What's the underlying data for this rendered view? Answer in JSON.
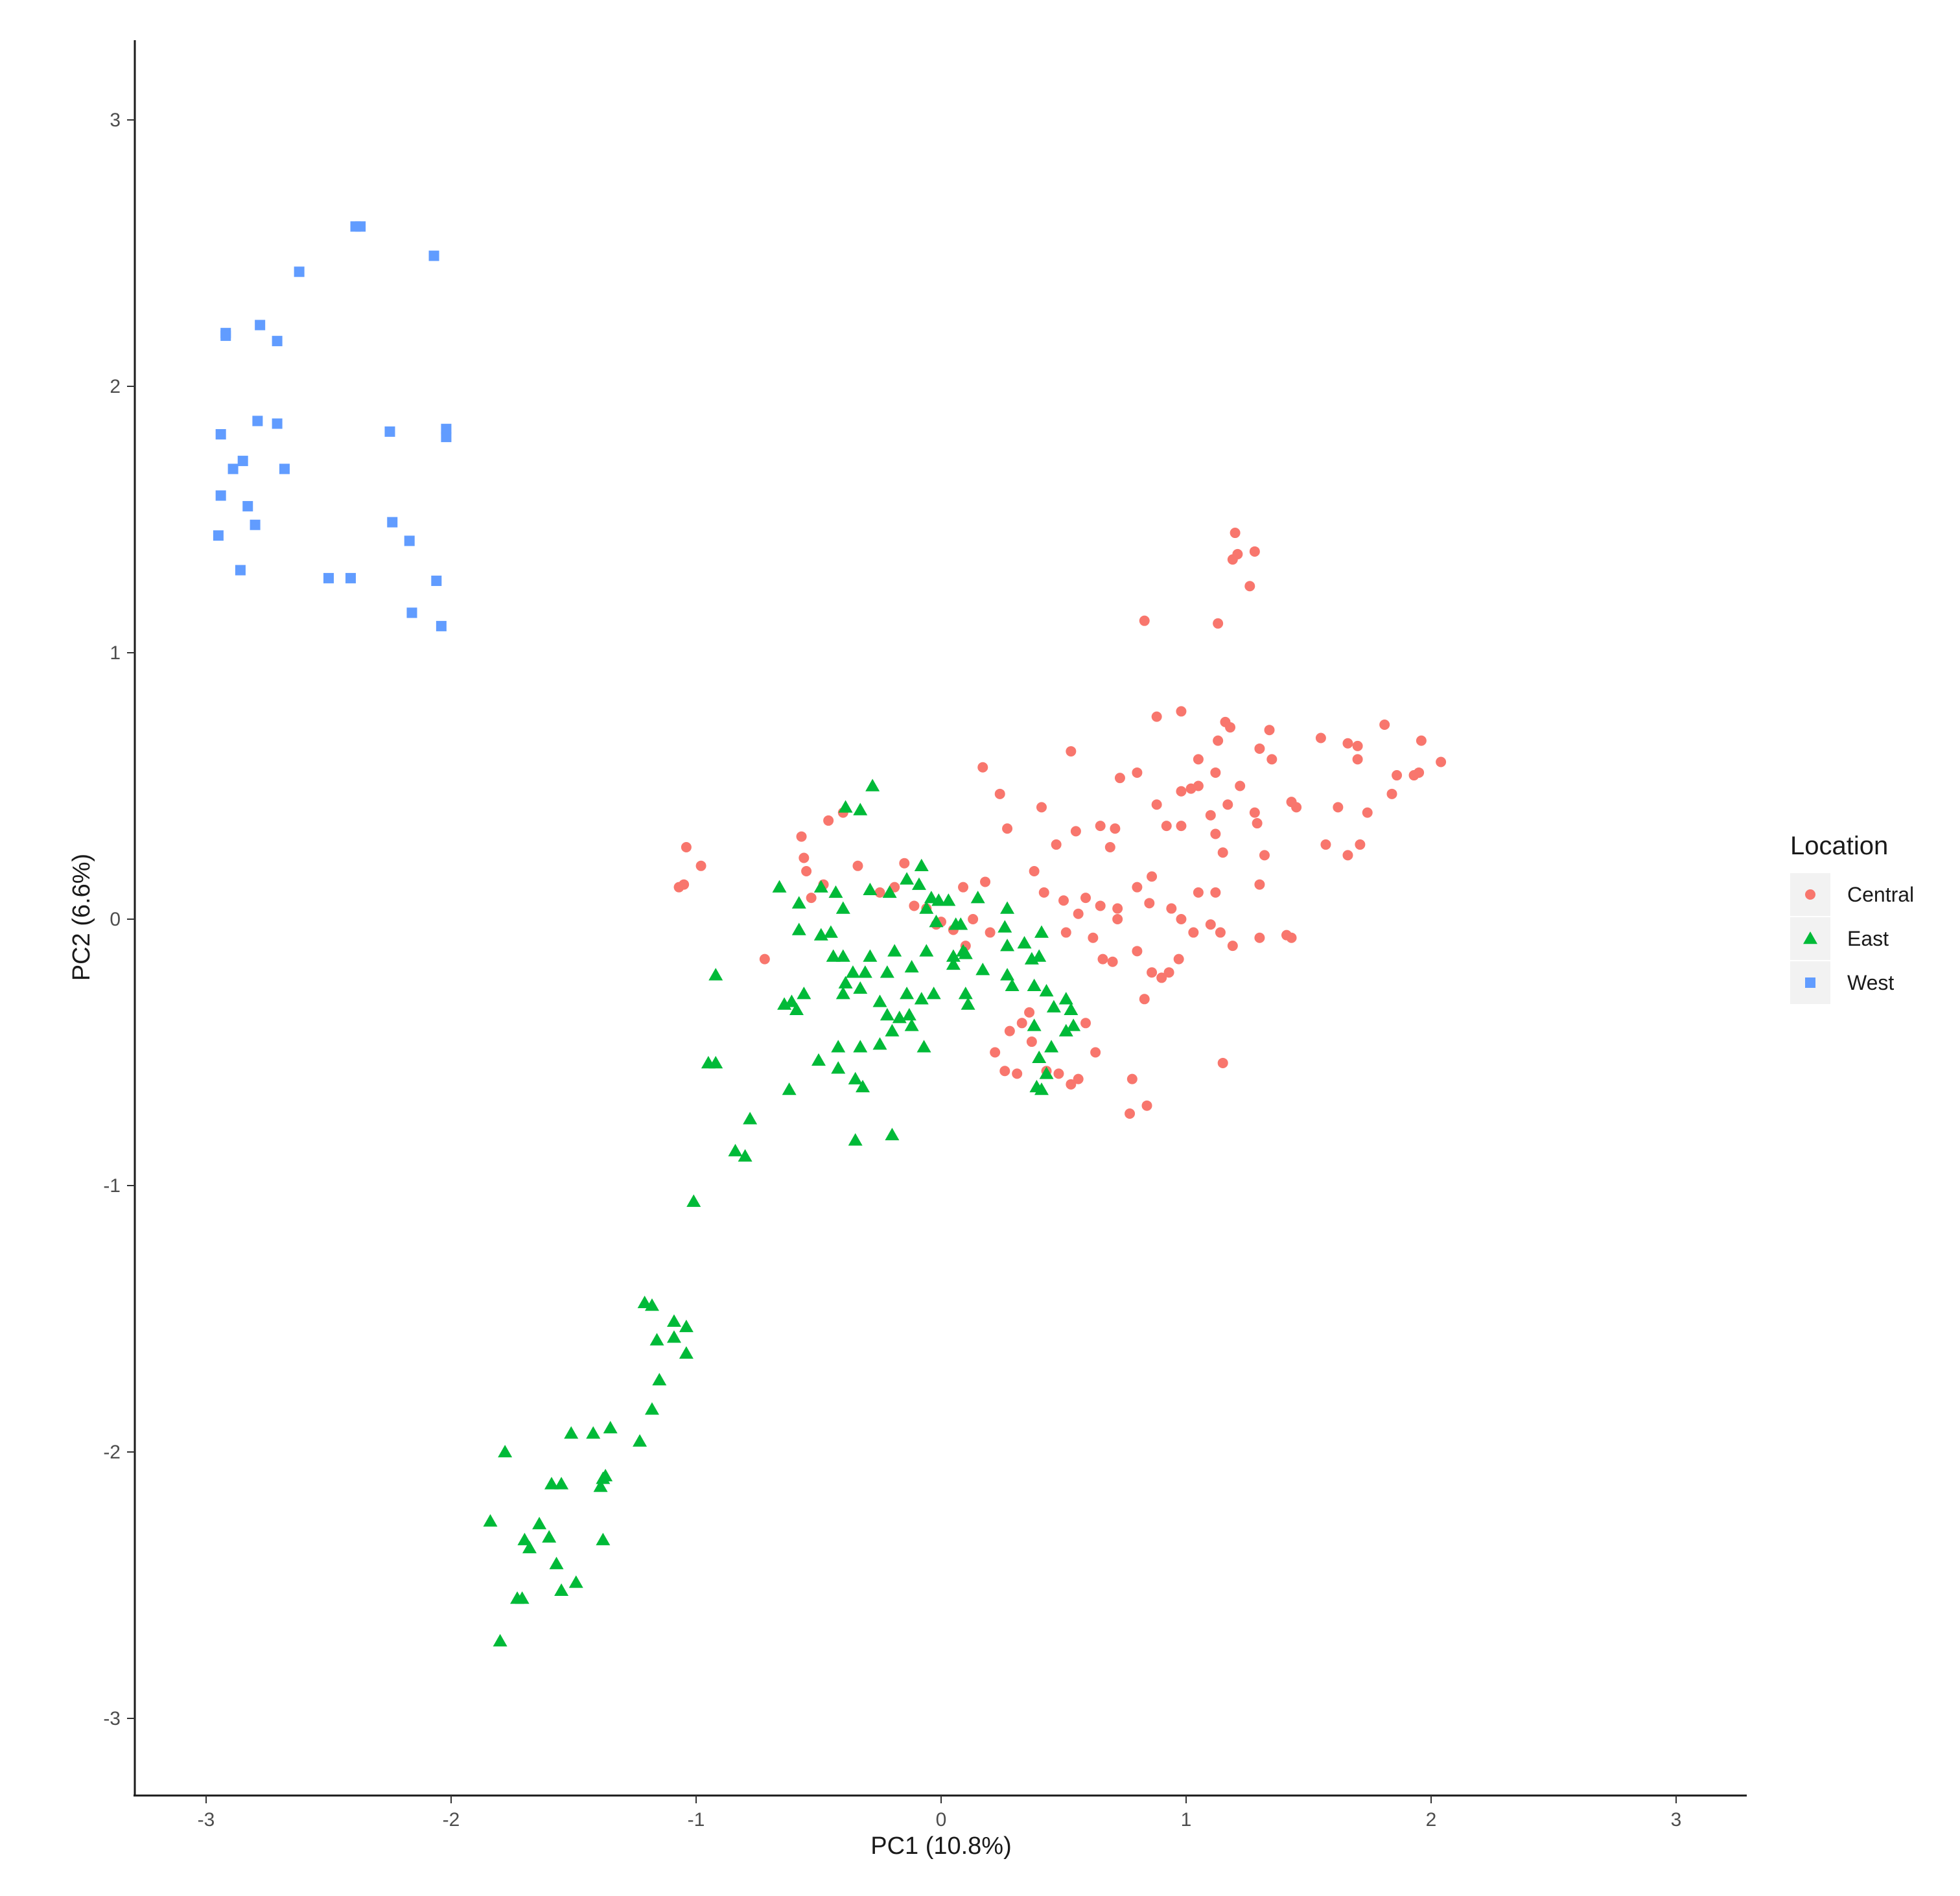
{
  "chart_data": {
    "type": "scatter",
    "title": "",
    "xlabel": "PC1 (10.8%)",
    "ylabel": "PC2 (6.6%)",
    "xlim": [
      -3.3,
      3.3
    ],
    "ylim": [
      -3.3,
      3.3
    ],
    "xticks": [
      "-3",
      "-2",
      "-1",
      "0",
      "1",
      "2",
      "3"
    ],
    "yticks": [
      "3",
      "2",
      "1",
      "0",
      "-1",
      "-2",
      "-3"
    ],
    "grid": false,
    "legend": {
      "title": "Location",
      "position": "right"
    },
    "series": [
      {
        "name": "Central",
        "color": "#F8766D",
        "shape": "circle",
        "points": [
          [
            1.2,
            1.45
          ],
          [
            1.19,
            1.35
          ],
          [
            1.21,
            1.37
          ],
          [
            1.28,
            1.38
          ],
          [
            1.26,
            1.25
          ],
          [
            1.13,
            1.11
          ],
          [
            0.83,
            1.12
          ],
          [
            0.88,
            0.76
          ],
          [
            0.98,
            0.78
          ],
          [
            1.13,
            0.67
          ],
          [
            1.16,
            0.74
          ],
          [
            1.18,
            0.72
          ],
          [
            1.34,
            0.71
          ],
          [
            1.05,
            0.6
          ],
          [
            0.8,
            0.55
          ],
          [
            1.02,
            0.49
          ],
          [
            1.05,
            0.5
          ],
          [
            1.12,
            0.55
          ],
          [
            1.22,
            0.5
          ],
          [
            1.3,
            0.64
          ],
          [
            1.35,
            0.6
          ],
          [
            1.55,
            0.68
          ],
          [
            1.66,
            0.66
          ],
          [
            1.7,
            0.65
          ],
          [
            1.7,
            0.6
          ],
          [
            1.81,
            0.73
          ],
          [
            1.96,
            0.67
          ],
          [
            2.04,
            0.59
          ],
          [
            1.86,
            0.54
          ],
          [
            1.93,
            0.54
          ],
          [
            1.95,
            0.55
          ],
          [
            1.84,
            0.47
          ],
          [
            1.74,
            0.4
          ],
          [
            1.62,
            0.42
          ],
          [
            1.66,
            0.24
          ],
          [
            1.57,
            0.28
          ],
          [
            1.71,
            0.28
          ],
          [
            1.43,
            0.44
          ],
          [
            1.45,
            0.42
          ],
          [
            1.29,
            0.36
          ],
          [
            1.28,
            0.4
          ],
          [
            1.17,
            0.43
          ],
          [
            1.1,
            0.39
          ],
          [
            0.98,
            0.35
          ],
          [
            1.12,
            0.32
          ],
          [
            1.15,
            0.25
          ],
          [
            1.32,
            0.24
          ],
          [
            1.3,
            0.13
          ],
          [
            1.12,
            0.1
          ],
          [
            1.05,
            0.1
          ],
          [
            0.94,
            0.04
          ],
          [
            0.98,
            0.0
          ],
          [
            0.85,
            0.06
          ],
          [
            0.71,
            0.34
          ],
          [
            0.69,
            0.27
          ],
          [
            0.65,
            0.35
          ],
          [
            0.55,
            0.33
          ],
          [
            0.47,
            0.28
          ],
          [
            0.42,
            0.1
          ],
          [
            0.38,
            0.18
          ],
          [
            0.27,
            0.34
          ],
          [
            0.24,
            0.47
          ],
          [
            0.17,
            0.57
          ],
          [
            0.41,
            0.42
          ],
          [
            0.53,
            0.63
          ],
          [
            0.73,
            0.53
          ],
          [
            0.88,
            0.43
          ],
          [
            0.92,
            0.35
          ],
          [
            0.98,
            0.48
          ],
          [
            0.86,
            0.16
          ],
          [
            0.8,
            0.12
          ],
          [
            0.72,
            0.0
          ],
          [
            0.65,
            0.05
          ],
          [
            0.56,
            0.02
          ],
          [
            0.51,
            -0.05
          ],
          [
            0.5,
            0.07
          ],
          [
            0.59,
            0.08
          ],
          [
            0.62,
            -0.07
          ],
          [
            0.66,
            -0.15
          ],
          [
            0.7,
            -0.16
          ],
          [
            0.72,
            0.04
          ],
          [
            0.8,
            -0.12
          ],
          [
            0.86,
            -0.2
          ],
          [
            0.93,
            -0.2
          ],
          [
            0.83,
            -0.3
          ],
          [
            0.9,
            -0.22
          ],
          [
            0.97,
            -0.15
          ],
          [
            1.03,
            -0.05
          ],
          [
            1.1,
            -0.02
          ],
          [
            1.14,
            -0.05
          ],
          [
            1.19,
            -0.1
          ],
          [
            1.3,
            -0.07
          ],
          [
            1.41,
            -0.06
          ],
          [
            1.43,
            -0.07
          ],
          [
            1.15,
            -0.54
          ],
          [
            0.78,
            -0.6
          ],
          [
            0.77,
            -0.73
          ],
          [
            0.84,
            -0.7
          ],
          [
            0.63,
            -0.5
          ],
          [
            0.59,
            -0.39
          ],
          [
            0.56,
            -0.6
          ],
          [
            0.53,
            -0.62
          ],
          [
            0.48,
            -0.58
          ],
          [
            0.43,
            -0.57
          ],
          [
            0.37,
            -0.46
          ],
          [
            0.33,
            -0.39
          ],
          [
            0.28,
            -0.42
          ],
          [
            0.26,
            -0.57
          ],
          [
            0.22,
            -0.5
          ],
          [
            0.31,
            -0.58
          ],
          [
            0.36,
            -0.35
          ],
          [
            0.2,
            -0.05
          ],
          [
            0.18,
            0.14
          ],
          [
            0.13,
            0.0
          ],
          [
            0.09,
            0.12
          ],
          [
            0.1,
            -0.1
          ],
          [
            0.05,
            -0.04
          ],
          [
            0.0,
            -0.01
          ],
          [
            -0.02,
            -0.02
          ],
          [
            -0.06,
            0.04
          ],
          [
            -0.11,
            0.05
          ],
          [
            -0.15,
            0.21
          ],
          [
            -0.19,
            0.12
          ],
          [
            -0.25,
            0.1
          ],
          [
            -0.34,
            0.2
          ],
          [
            -0.4,
            0.4
          ],
          [
            -0.46,
            0.37
          ],
          [
            -0.48,
            0.13
          ],
          [
            -0.53,
            0.08
          ],
          [
            -0.55,
            0.18
          ],
          [
            -0.56,
            0.23
          ],
          [
            -0.57,
            0.31
          ],
          [
            -0.72,
            -0.15
          ],
          [
            -1.07,
            0.12
          ],
          [
            -1.05,
            0.13
          ],
          [
            -1.04,
            0.27
          ],
          [
            -0.98,
            0.2
          ]
        ]
      },
      {
        "name": "East",
        "color": "#00BA38",
        "shape": "triangle",
        "points": [
          [
            -0.28,
            0.5
          ],
          [
            -0.39,
            0.42
          ],
          [
            -0.33,
            0.41
          ],
          [
            -0.66,
            0.12
          ],
          [
            -0.58,
            0.06
          ],
          [
            -0.49,
            0.12
          ],
          [
            -0.43,
            0.1
          ],
          [
            -0.4,
            0.04
          ],
          [
            -0.29,
            0.11
          ],
          [
            -0.21,
            0.1
          ],
          [
            -0.14,
            0.15
          ],
          [
            -0.08,
            0.2
          ],
          [
            -0.09,
            0.13
          ],
          [
            -0.04,
            0.08
          ],
          [
            -0.01,
            0.07
          ],
          [
            0.03,
            0.07
          ],
          [
            -0.06,
            0.04
          ],
          [
            -0.02,
            -0.01
          ],
          [
            0.06,
            -0.02
          ],
          [
            0.08,
            -0.02
          ],
          [
            0.15,
            0.08
          ],
          [
            0.27,
            0.04
          ],
          [
            0.26,
            -0.03
          ],
          [
            0.41,
            -0.05
          ],
          [
            0.4,
            -0.14
          ],
          [
            0.37,
            -0.15
          ],
          [
            0.34,
            -0.09
          ],
          [
            0.27,
            -0.1
          ],
          [
            0.1,
            -0.13
          ],
          [
            0.09,
            -0.12
          ],
          [
            0.05,
            -0.14
          ],
          [
            -0.06,
            -0.12
          ],
          [
            -0.12,
            -0.18
          ],
          [
            -0.19,
            -0.12
          ],
          [
            -0.22,
            -0.2
          ],
          [
            -0.29,
            -0.14
          ],
          [
            -0.31,
            -0.2
          ],
          [
            -0.33,
            -0.26
          ],
          [
            -0.36,
            -0.2
          ],
          [
            -0.4,
            -0.14
          ],
          [
            -0.44,
            -0.14
          ],
          [
            -0.45,
            -0.05
          ],
          [
            -0.58,
            -0.04
          ],
          [
            -0.49,
            -0.06
          ],
          [
            -0.56,
            -0.28
          ],
          [
            -0.61,
            -0.31
          ],
          [
            -0.64,
            -0.32
          ],
          [
            -0.59,
            -0.34
          ],
          [
            -0.39,
            -0.24
          ],
          [
            -0.4,
            -0.28
          ],
          [
            -0.25,
            -0.31
          ],
          [
            -0.22,
            -0.36
          ],
          [
            -0.2,
            -0.42
          ],
          [
            -0.17,
            -0.37
          ],
          [
            -0.13,
            -0.36
          ],
          [
            -0.14,
            -0.28
          ],
          [
            -0.08,
            -0.3
          ],
          [
            -0.12,
            -0.4
          ],
          [
            -0.07,
            -0.48
          ],
          [
            -0.03,
            -0.28
          ],
          [
            0.1,
            -0.28
          ],
          [
            0.11,
            -0.32
          ],
          [
            0.05,
            -0.17
          ],
          [
            0.17,
            -0.19
          ],
          [
            0.27,
            -0.21
          ],
          [
            0.29,
            -0.25
          ],
          [
            0.38,
            -0.25
          ],
          [
            0.43,
            -0.27
          ],
          [
            0.46,
            -0.33
          ],
          [
            0.51,
            -0.3
          ],
          [
            0.53,
            -0.34
          ],
          [
            0.54,
            -0.4
          ],
          [
            0.51,
            -0.42
          ],
          [
            0.45,
            -0.48
          ],
          [
            0.38,
            -0.4
          ],
          [
            0.4,
            -0.52
          ],
          [
            0.41,
            -0.64
          ],
          [
            0.43,
            -0.58
          ],
          [
            0.39,
            -0.63
          ],
          [
            -0.25,
            -0.47
          ],
          [
            -0.33,
            -0.48
          ],
          [
            -0.42,
            -0.48
          ],
          [
            -0.5,
            -0.53
          ],
          [
            -0.42,
            -0.56
          ],
          [
            -0.35,
            -0.6
          ],
          [
            -0.32,
            -0.63
          ],
          [
            -0.62,
            -0.64
          ],
          [
            -0.92,
            -0.54
          ],
          [
            -0.95,
            -0.54
          ],
          [
            -0.78,
            -0.75
          ],
          [
            -0.84,
            -0.87
          ],
          [
            -0.8,
            -0.89
          ],
          [
            -0.35,
            -0.83
          ],
          [
            -0.2,
            -0.81
          ],
          [
            -1.01,
            -1.06
          ],
          [
            -0.92,
            -0.21
          ],
          [
            -1.21,
            -1.44
          ],
          [
            -1.18,
            -1.45
          ],
          [
            -1.09,
            -1.51
          ],
          [
            -1.04,
            -1.53
          ],
          [
            -1.09,
            -1.57
          ],
          [
            -1.16,
            -1.58
          ],
          [
            -1.04,
            -1.63
          ],
          [
            -1.15,
            -1.73
          ],
          [
            -1.18,
            -1.84
          ],
          [
            -1.23,
            -1.96
          ],
          [
            -1.35,
            -1.91
          ],
          [
            -1.42,
            -1.93
          ],
          [
            -1.51,
            -1.93
          ],
          [
            -1.37,
            -2.09
          ],
          [
            -1.38,
            -2.1
          ],
          [
            -1.39,
            -2.13
          ],
          [
            -1.55,
            -2.12
          ],
          [
            -1.59,
            -2.12
          ],
          [
            -1.78,
            -2.0
          ],
          [
            -1.84,
            -2.26
          ],
          [
            -1.64,
            -2.27
          ],
          [
            -1.7,
            -2.33
          ],
          [
            -1.68,
            -2.36
          ],
          [
            -1.6,
            -2.32
          ],
          [
            -1.38,
            -2.33
          ],
          [
            -1.57,
            -2.42
          ],
          [
            -1.49,
            -2.49
          ],
          [
            -1.55,
            -2.52
          ],
          [
            -1.73,
            -2.55
          ],
          [
            -1.71,
            -2.55
          ],
          [
            -1.8,
            -2.71
          ]
        ]
      },
      {
        "name": "West",
        "color": "#619CFF",
        "shape": "square",
        "points": [
          [
            -2.39,
            2.6
          ],
          [
            -2.37,
            2.6
          ],
          [
            -2.07,
            2.49
          ],
          [
            -2.62,
            2.43
          ],
          [
            -2.78,
            2.23
          ],
          [
            -2.71,
            2.17
          ],
          [
            -2.92,
            2.2
          ],
          [
            -2.92,
            2.19
          ],
          [
            -2.79,
            1.87
          ],
          [
            -2.71,
            1.86
          ],
          [
            -2.94,
            1.82
          ],
          [
            -2.25,
            1.83
          ],
          [
            -2.02,
            1.84
          ],
          [
            -2.02,
            1.81
          ],
          [
            -2.85,
            1.72
          ],
          [
            -2.89,
            1.69
          ],
          [
            -2.68,
            1.69
          ],
          [
            -2.94,
            1.59
          ],
          [
            -2.83,
            1.55
          ],
          [
            -2.8,
            1.48
          ],
          [
            -2.24,
            1.49
          ],
          [
            -2.17,
            1.42
          ],
          [
            -2.95,
            1.44
          ],
          [
            -2.86,
            1.31
          ],
          [
            -2.5,
            1.28
          ],
          [
            -2.41,
            1.28
          ],
          [
            -2.06,
            1.27
          ],
          [
            -2.16,
            1.15
          ],
          [
            -2.04,
            1.1
          ]
        ]
      }
    ]
  }
}
